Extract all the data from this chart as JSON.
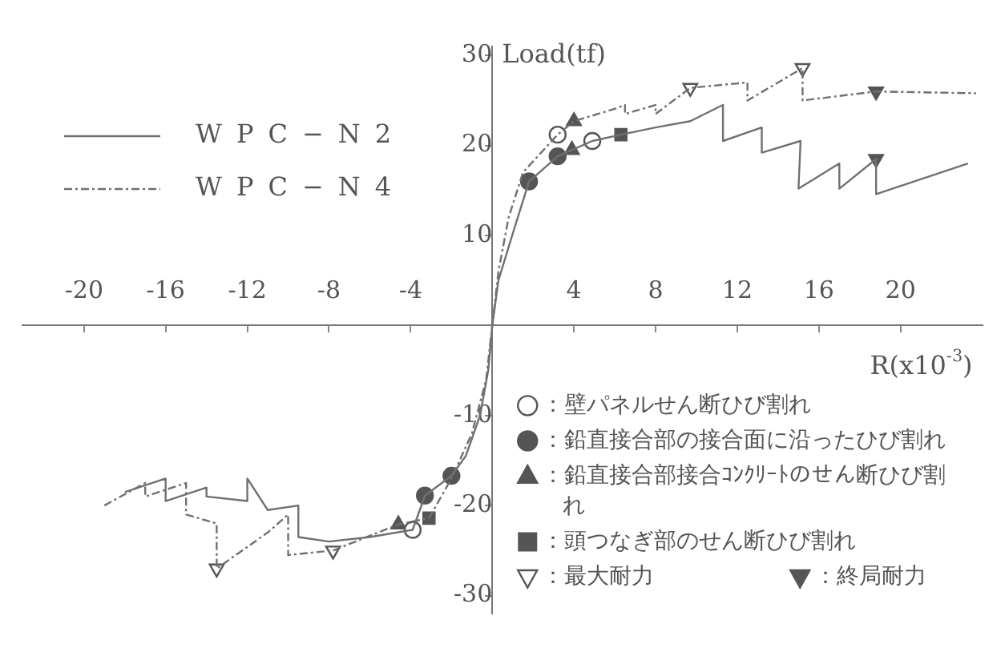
{
  "chart_data": {
    "type": "line",
    "xlabel": "R(x10$^{-3}$)",
    "ylabel": "Load(tf)",
    "xlim": [
      -23,
      24
    ],
    "ylim": [
      -32,
      31
    ],
    "xticks": [
      -20,
      -16,
      -12,
      -8,
      -4,
      4,
      8,
      12,
      16,
      20
    ],
    "yticks": [
      -30,
      -20,
      -10,
      10,
      20,
      30
    ],
    "grid": false,
    "legend": "bottom right",
    "series": [
      {
        "name": "WPC−N2",
        "color": "#707070",
        "line_style": "solid",
        "marker": "none",
        "x": [
          -18,
          -16,
          -16,
          -14,
          -14,
          -12,
          -12,
          -11,
          -9.5,
          -9.5,
          -8,
          -6,
          -3.9,
          -3.3,
          -2,
          -1.3,
          -0.6,
          -0.2,
          0,
          0.3,
          1,
          1.8,
          3.2,
          4.9,
          6.3,
          8,
          9.7,
          11.3,
          11.3,
          13.2,
          13.2,
          15.1,
          15,
          17,
          17,
          18.8,
          18.8,
          23.3
        ],
        "values": [
          -18.5,
          -17,
          -19.5,
          -18,
          -19,
          -19.5,
          -17,
          -20.5,
          -20,
          -23.5,
          -24,
          -23.5,
          -22.7,
          -18.9,
          -16.7,
          -14.5,
          -10,
          -5,
          0,
          5,
          10.2,
          16,
          18.8,
          20.5,
          21.2,
          22,
          22.7,
          24.5,
          20.5,
          22,
          19.2,
          20.5,
          15.2,
          18,
          15.2,
          18.5,
          14.6,
          18
        ]
      },
      {
        "name": "WPC−N4",
        "color": "#707070",
        "line_style": "dashed",
        "marker": "none",
        "x": [
          -19,
          -17,
          -17,
          -15,
          -15,
          -13.5,
          -13.5,
          -11,
          -10,
          -10,
          -7.8,
          -4.6,
          -3.1,
          -2,
          -1,
          -0.3,
          0,
          0.3,
          0.8,
          1.5,
          3.2,
          4,
          5.9,
          6.5,
          6.5,
          8,
          8,
          9.7,
          12.5,
          12.5,
          15.2,
          15.2,
          18.8,
          23.7
        ],
        "values": [
          -20,
          -17.5,
          -19,
          -17.5,
          -21,
          -22,
          -27,
          -23,
          -21,
          -25.5,
          -25,
          -22.1,
          -21.4,
          -17,
          -12,
          -6,
          0,
          6,
          12,
          17,
          21.2,
          22.7,
          24,
          24.5,
          23.5,
          24.5,
          23.5,
          26.4,
          27,
          25,
          28.6,
          25,
          26,
          25.8
        ]
      },
      {
        "name": "：壁パネルせん断ひび割れ",
        "type": "scatter",
        "color": "#ffffff",
        "marker": "circle",
        "x": [
          3.2,
          4.9,
          -3.9
        ],
        "values": [
          21.2,
          20.5,
          -22.7
        ]
      },
      {
        "name": "：鉛直接合部の接合面に沿ったひび割れ",
        "type": "scatter",
        "color": "#555555",
        "marker": "circle",
        "x": [
          1.8,
          3.2,
          -2,
          -3.3
        ],
        "values": [
          16,
          18.8,
          -16.7,
          -18.9
        ]
      },
      {
        "name": "：鉛直接合部接合ｺﾝｸﾘｰﾄのせん断ひび割れ",
        "type": "scatter",
        "color": "#555555",
        "marker": "triangle",
        "x": [
          4,
          3.9,
          -4.6
        ],
        "values": [
          22.7,
          19.5,
          -22.1
        ]
      },
      {
        "name": "：頭つなぎ部のせん断ひび割れ",
        "type": "scatter",
        "color": "#555555",
        "marker": "square",
        "x": [
          6.3,
          -3.1
        ],
        "values": [
          21.2,
          -21.4
        ]
      },
      {
        "name": "：最大耐力",
        "type": "scatter",
        "color": "#ffffff",
        "marker": "triangle-down",
        "x": [
          9.7,
          15.2,
          -7.8,
          -13.5
        ],
        "values": [
          26.4,
          28.6,
          -25,
          -27
        ]
      },
      {
        "name": "：終局耐力",
        "type": "scatter",
        "color": "#555555",
        "marker": "triangle-down",
        "x": [
          18.8,
          18.8
        ],
        "values": [
          26,
          18.5
        ]
      }
    ]
  }
}
